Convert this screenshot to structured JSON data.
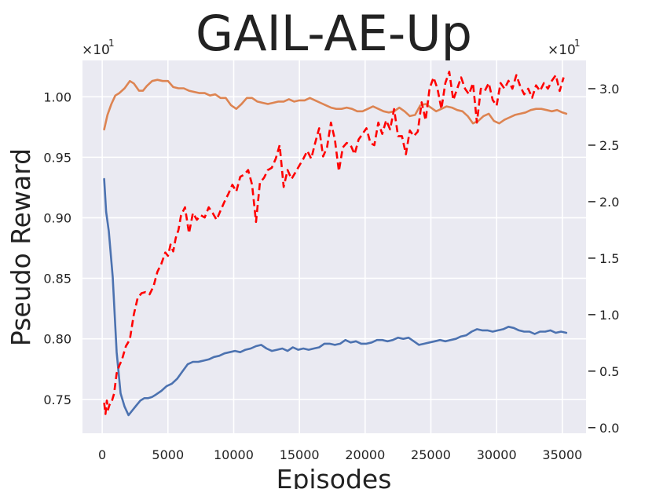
{
  "chart_data": {
    "type": "line",
    "title": "GAIL-AE-Up",
    "xlabel": "Episodes",
    "ylabel": "Pseudo Reward",
    "xlim": [
      -1500,
      36800
    ],
    "ylim": [
      0.722,
      1.03
    ],
    "y2lim": [
      -0.05,
      3.25
    ],
    "right_multiplier": "×10",
    "right_multiplier_exp": "1",
    "left_multiplier": "×10",
    "left_multiplier_exp": "1",
    "grid": true,
    "xticks": [
      {
        "value": 0,
        "label": "0"
      },
      {
        "value": 5000,
        "label": "5000"
      },
      {
        "value": 10000,
        "label": "10000"
      },
      {
        "value": 15000,
        "label": "15000"
      },
      {
        "value": 20000,
        "label": "20000"
      },
      {
        "value": 25000,
        "label": "25000"
      },
      {
        "value": 30000,
        "label": "30000"
      },
      {
        "value": 35000,
        "label": "35000"
      }
    ],
    "yticks": [
      {
        "value": 0.75,
        "label": "0.75"
      },
      {
        "value": 0.8,
        "label": "0.80"
      },
      {
        "value": 0.85,
        "label": "0.85"
      },
      {
        "value": 0.9,
        "label": "0.90"
      },
      {
        "value": 0.95,
        "label": "0.95"
      },
      {
        "value": 1.0,
        "label": "1.00"
      }
    ],
    "y2ticks": [
      {
        "value": 0.0,
        "label": "0.0"
      },
      {
        "value": 0.5,
        "label": "0.5"
      },
      {
        "value": 1.0,
        "label": "1.0"
      },
      {
        "value": 1.5,
        "label": "1.5"
      },
      {
        "value": 2.0,
        "label": "2.0"
      },
      {
        "value": 2.5,
        "label": "2.5"
      },
      {
        "value": 3.0,
        "label": "3.0"
      }
    ],
    "series": [
      {
        "axis": "left",
        "color": "#4c72b0",
        "style": "solid",
        "x": [
          150,
          300,
          500,
          800,
          1100,
          1400,
          1700,
          2000,
          2300,
          2600,
          2900,
          3200,
          3500,
          3800,
          4100,
          4500,
          4900,
          5300,
          5700,
          6100,
          6500,
          6900,
          7300,
          7700,
          8100,
          8500,
          8900,
          9300,
          9700,
          10100,
          10500,
          10900,
          11300,
          11700,
          12100,
          12500,
          12900,
          13300,
          13700,
          14100,
          14500,
          14900,
          15300,
          15700,
          16100,
          16500,
          16900,
          17300,
          17700,
          18100,
          18500,
          18900,
          19300,
          19700,
          20100,
          20500,
          20900,
          21300,
          21700,
          22100,
          22500,
          22900,
          23300,
          23700,
          24100,
          24500,
          24900,
          25300,
          25700,
          26100,
          26500,
          26900,
          27300,
          27700,
          28100,
          28500,
          28900,
          29300,
          29700,
          30100,
          30500,
          30900,
          31300,
          31700,
          32100,
          32500,
          32900,
          33300,
          33700,
          34100,
          34500,
          34900,
          35300
        ],
        "y": [
          0.932,
          0.905,
          0.889,
          0.851,
          0.789,
          0.755,
          0.744,
          0.737,
          0.741,
          0.745,
          0.749,
          0.751,
          0.751,
          0.752,
          0.754,
          0.757,
          0.761,
          0.763,
          0.767,
          0.773,
          0.779,
          0.781,
          0.781,
          0.782,
          0.783,
          0.785,
          0.786,
          0.788,
          0.789,
          0.79,
          0.789,
          0.791,
          0.792,
          0.794,
          0.795,
          0.792,
          0.79,
          0.791,
          0.792,
          0.79,
          0.793,
          0.791,
          0.792,
          0.791,
          0.792,
          0.793,
          0.796,
          0.796,
          0.795,
          0.796,
          0.799,
          0.797,
          0.798,
          0.796,
          0.796,
          0.797,
          0.799,
          0.799,
          0.798,
          0.799,
          0.801,
          0.8,
          0.801,
          0.798,
          0.795,
          0.796,
          0.797,
          0.798,
          0.799,
          0.798,
          0.799,
          0.8,
          0.802,
          0.803,
          0.806,
          0.808,
          0.807,
          0.807,
          0.806,
          0.807,
          0.808,
          0.81,
          0.809,
          0.807,
          0.806,
          0.806,
          0.804,
          0.806,
          0.806,
          0.807,
          0.805,
          0.806,
          0.805
        ]
      },
      {
        "axis": "left",
        "color": "#dd8452",
        "style": "solid",
        "x": [
          150,
          400,
          700,
          1000,
          1300,
          1700,
          2100,
          2400,
          2800,
          3100,
          3400,
          3800,
          4200,
          4600,
          5000,
          5400,
          5800,
          6200,
          6600,
          7000,
          7400,
          7800,
          8200,
          8600,
          9000,
          9400,
          9800,
          10200,
          10600,
          11000,
          11400,
          11800,
          12200,
          12600,
          13000,
          13400,
          13800,
          14200,
          14600,
          15000,
          15400,
          15800,
          16200,
          16600,
          17000,
          17400,
          17800,
          18200,
          18600,
          19000,
          19400,
          19800,
          20200,
          20600,
          21000,
          21400,
          21800,
          22200,
          22600,
          23000,
          23400,
          23800,
          24200,
          24600,
          25000,
          25400,
          25800,
          26200,
          26600,
          27000,
          27400,
          27800,
          28200,
          28600,
          29000,
          29400,
          29800,
          30200,
          30600,
          31000,
          31400,
          31800,
          32200,
          32600,
          33000,
          33400,
          33800,
          34200,
          34600,
          35000,
          35300
        ],
        "y": [
          0.973,
          0.985,
          0.994,
          1.001,
          1.003,
          1.007,
          1.013,
          1.011,
          1.005,
          1.005,
          1.009,
          1.013,
          1.014,
          1.013,
          1.013,
          1.008,
          1.007,
          1.007,
          1.005,
          1.004,
          1.003,
          1.003,
          1.001,
          1.002,
          0.999,
          0.999,
          0.993,
          0.99,
          0.994,
          0.999,
          0.999,
          0.996,
          0.995,
          0.994,
          0.995,
          0.996,
          0.996,
          0.998,
          0.996,
          0.997,
          0.997,
          0.999,
          0.997,
          0.995,
          0.993,
          0.991,
          0.99,
          0.99,
          0.991,
          0.99,
          0.988,
          0.988,
          0.99,
          0.992,
          0.99,
          0.988,
          0.987,
          0.988,
          0.991,
          0.988,
          0.984,
          0.985,
          0.993,
          0.994,
          0.991,
          0.988,
          0.99,
          0.992,
          0.991,
          0.989,
          0.988,
          0.984,
          0.978,
          0.98,
          0.984,
          0.986,
          0.98,
          0.978,
          0.981,
          0.983,
          0.985,
          0.986,
          0.987,
          0.989,
          0.99,
          0.99,
          0.989,
          0.988,
          0.989,
          0.987,
          0.986
        ]
      },
      {
        "axis": "right",
        "color": "#ff0000",
        "style": "dashed",
        "x": [
          150,
          250,
          350,
          450,
          550,
          700,
          900,
          1100,
          1300,
          1500,
          1800,
          2100,
          2400,
          2700,
          3000,
          3300,
          3600,
          3900,
          4200,
          4500,
          4800,
          5000,
          5200,
          5400,
          5600,
          5800,
          6000,
          6300,
          6600,
          6900,
          7200,
          7500,
          7800,
          8100,
          8400,
          8700,
          9000,
          9300,
          9600,
          9900,
          10200,
          10500,
          10800,
          11100,
          11400,
          11700,
          12000,
          12300,
          12600,
          12900,
          13200,
          13500,
          13800,
          14100,
          14400,
          14700,
          15000,
          15300,
          15600,
          15900,
          16200,
          16500,
          16800,
          17100,
          17400,
          17700,
          18000,
          18300,
          18600,
          18900,
          19200,
          19500,
          19800,
          20100,
          20400,
          20700,
          21000,
          21300,
          21600,
          21900,
          22200,
          22500,
          22800,
          23100,
          23400,
          23700,
          24000,
          24300,
          24600,
          24900,
          25200,
          25500,
          25800,
          26100,
          26400,
          26700,
          27000,
          27300,
          27600,
          27900,
          28200,
          28500,
          28800,
          29100,
          29400,
          29700,
          30000,
          30300,
          30600,
          30900,
          31200,
          31500,
          31800,
          32100,
          32400,
          32700,
          33000,
          33300,
          33600,
          33900,
          34200,
          34500,
          34800,
          35100
        ],
        "y": [
          0.22,
          0.12,
          0.24,
          0.16,
          0.2,
          0.22,
          0.3,
          0.48,
          0.55,
          0.6,
          0.72,
          0.78,
          1.0,
          1.15,
          1.19,
          1.2,
          1.18,
          1.25,
          1.38,
          1.45,
          1.55,
          1.52,
          1.62,
          1.56,
          1.68,
          1.75,
          1.88,
          1.95,
          1.72,
          1.9,
          1.84,
          1.88,
          1.86,
          1.95,
          1.9,
          1.84,
          1.92,
          2.0,
          2.07,
          2.15,
          2.09,
          2.22,
          2.24,
          2.28,
          2.15,
          1.82,
          2.17,
          2.21,
          2.28,
          2.3,
          2.38,
          2.5,
          2.13,
          2.28,
          2.2,
          2.26,
          2.32,
          2.38,
          2.45,
          2.38,
          2.52,
          2.65,
          2.4,
          2.48,
          2.7,
          2.55,
          2.27,
          2.48,
          2.52,
          2.5,
          2.42,
          2.55,
          2.6,
          2.65,
          2.52,
          2.5,
          2.7,
          2.6,
          2.72,
          2.64,
          2.82,
          2.58,
          2.58,
          2.42,
          2.63,
          2.58,
          2.62,
          2.88,
          2.72,
          3.0,
          3.1,
          3.0,
          2.82,
          3.05,
          3.15,
          2.9,
          3.0,
          3.1,
          3.0,
          2.95,
          3.05,
          2.7,
          3.0,
          2.98,
          3.05,
          2.9,
          2.85,
          3.05,
          3.0,
          3.07,
          3.0,
          3.12,
          3.02,
          2.95,
          3.0,
          2.92,
          3.03,
          2.98,
          3.05,
          3.0,
          3.07,
          3.12,
          2.98,
          3.1
        ]
      }
    ]
  }
}
